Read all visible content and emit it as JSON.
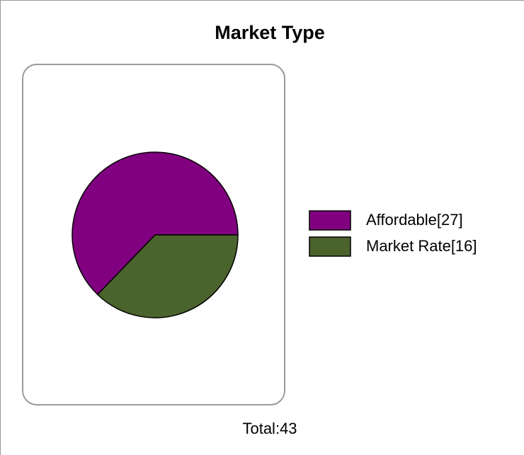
{
  "chart_data": {
    "type": "pie",
    "title": "Market Type",
    "categories": [
      "Affordable[27]",
      "Market Rate[16]"
    ],
    "values": [
      27,
      16
    ],
    "colors": [
      "#800080",
      "#4b632c"
    ],
    "total_label": "Total:43"
  }
}
